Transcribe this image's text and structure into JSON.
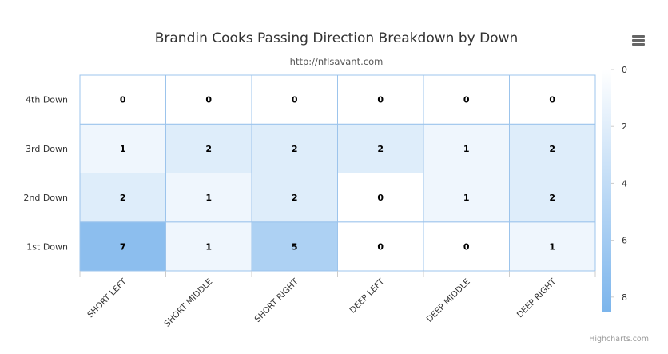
{
  "chart_data": {
    "type": "heatmap",
    "title": "Brandin Cooks Passing Direction Breakdown by Down",
    "subtitle": "http://nflsavant.com",
    "x_categories": [
      "SHORT LEFT",
      "SHORT MIDDLE",
      "SHORT RIGHT",
      "DEEP LEFT",
      "DEEP MIDDLE",
      "DEEP RIGHT"
    ],
    "y_categories": [
      "1st Down",
      "2nd Down",
      "3rd Down",
      "4th Down"
    ],
    "values": [
      [
        7,
        1,
        5,
        0,
        0,
        1
      ],
      [
        2,
        1,
        2,
        0,
        1,
        2
      ],
      [
        1,
        2,
        2,
        2,
        1,
        2
      ],
      [
        0,
        0,
        0,
        0,
        0,
        0
      ]
    ],
    "color_axis": {
      "min": 0,
      "max": 8,
      "ticks": [
        0,
        2,
        4,
        6,
        8
      ],
      "min_color": "#ffffff",
      "max_color": "#7cb5ec",
      "placement": "right"
    },
    "cell_border_color": "#9cc4ec",
    "data_labels": true
  },
  "credits": "Highcharts.com",
  "menu_icon": "hamburger-menu-icon"
}
